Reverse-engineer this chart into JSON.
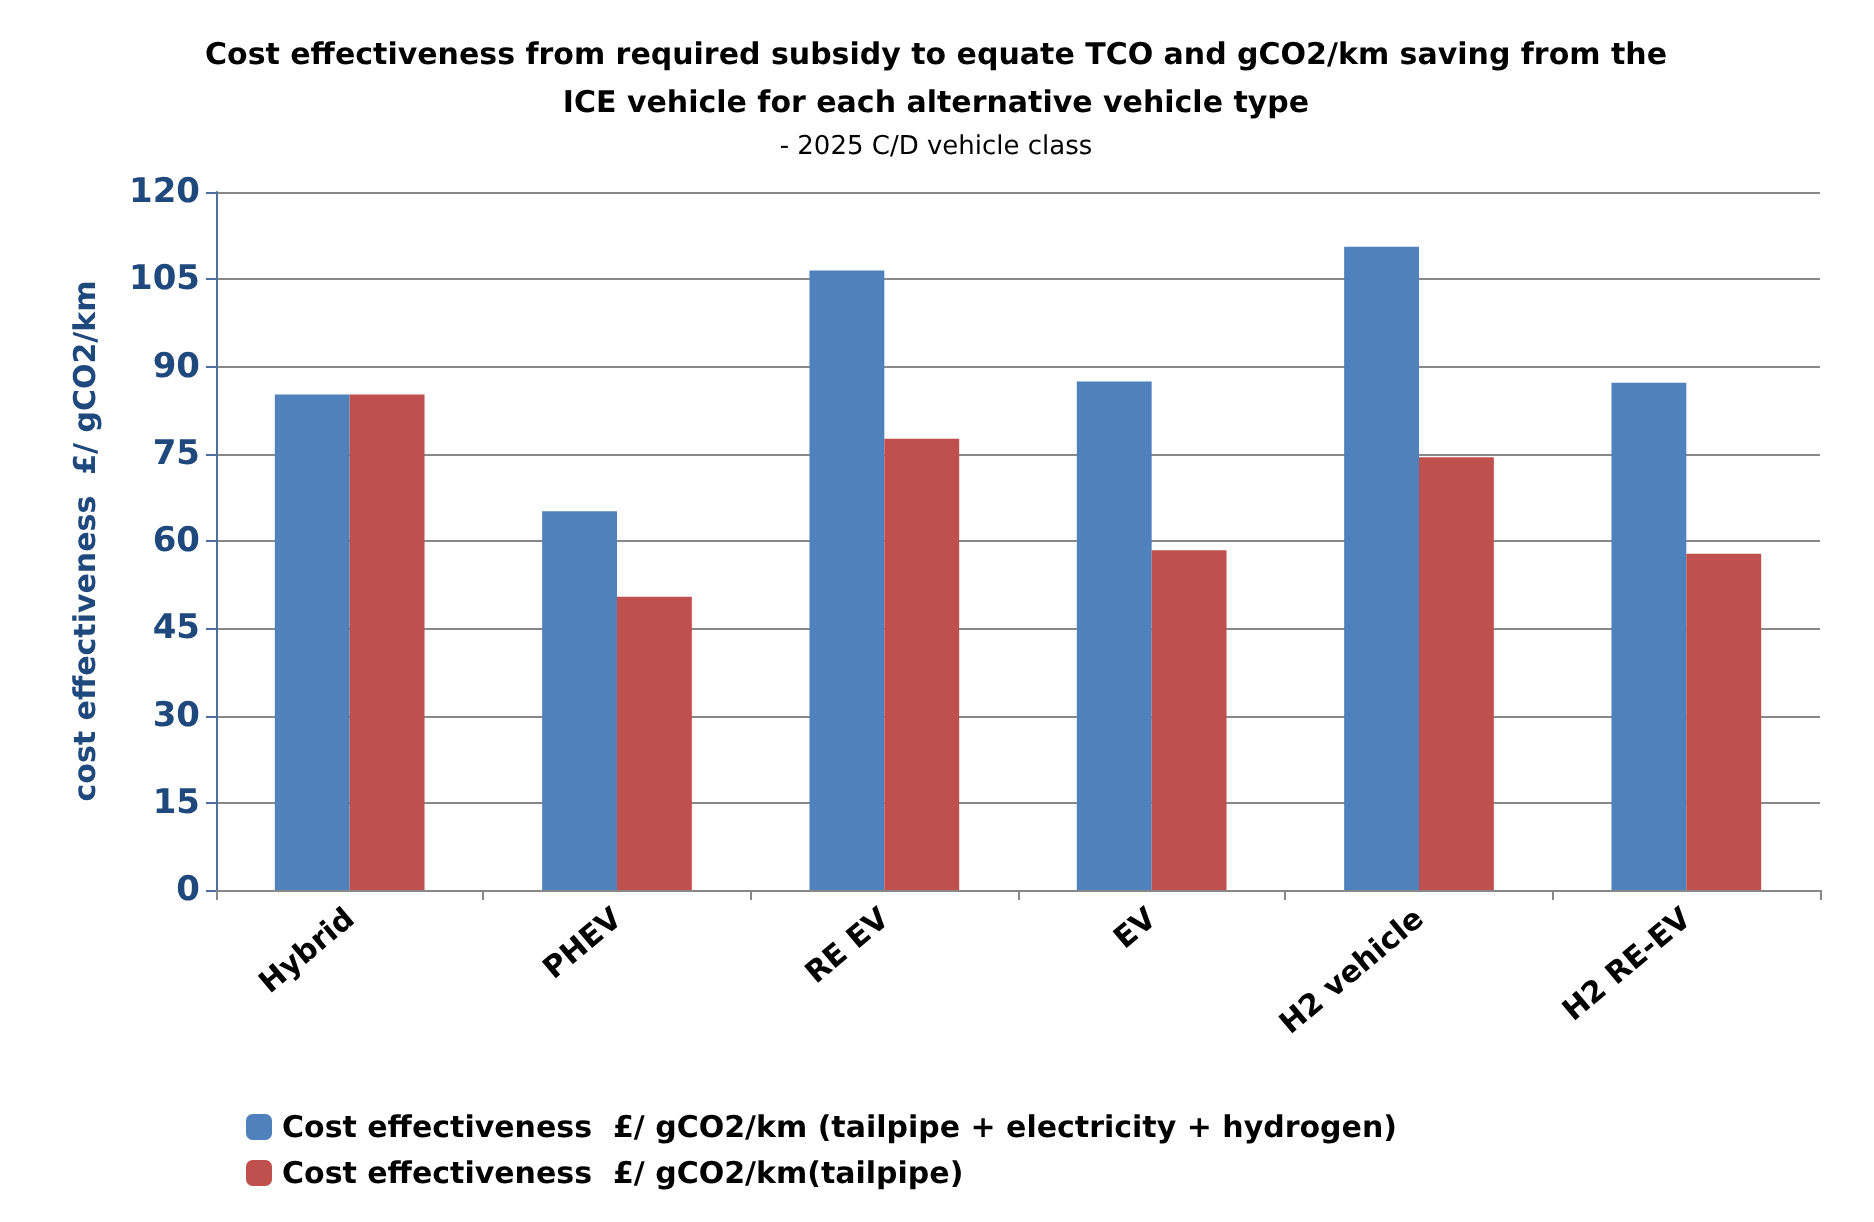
{
  "chart_data": {
    "type": "bar",
    "title": "Cost effectiveness from required subsidy to equate TCO and gCO2/km saving from the\nICE vehicle for each alternative vehicle type",
    "subtitle": "- 2025 C/D vehicle class",
    "ylabel": "cost effectiveness  £/ gCO2/km",
    "categories": [
      "Hybrid",
      "PHEV",
      "RE EV",
      "EV",
      "H2 vehicle",
      "H2 RE-EV"
    ],
    "series": [
      {
        "name": "Cost effectiveness  £/ gCO2/km (tailpipe + electricity + hydrogen)",
        "color": "#4f81bd",
        "values": [
          85.2,
          65.1,
          106.5,
          87.4,
          110.6,
          87.2
        ]
      },
      {
        "name": "Cost effectiveness  £/ gCO2/km(tailpipe)",
        "color": "#c0504d",
        "values": [
          85.2,
          50.4,
          77.6,
          58.4,
          74.4,
          57.8
        ]
      }
    ],
    "ylim": [
      0,
      120
    ],
    "yticks": [
      0,
      15,
      30,
      45,
      60,
      75,
      90,
      105,
      120
    ],
    "grid": "y",
    "legend": "bottom"
  }
}
